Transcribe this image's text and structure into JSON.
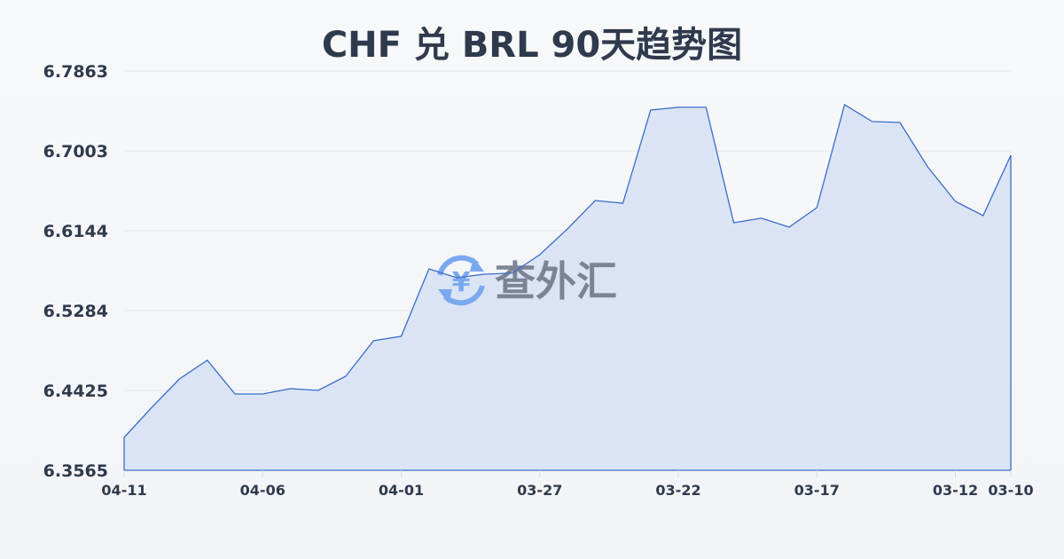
{
  "chart_data": {
    "type": "area",
    "title": "CHF 兑 BRL 90天趋势图",
    "xlabel": "",
    "ylabel": "",
    "x": [
      "04-11",
      "04-10",
      "04-09",
      "04-08",
      "04-07",
      "04-06",
      "04-05",
      "04-04",
      "04-03",
      "04-02",
      "04-01",
      "03-31",
      "03-30",
      "03-29",
      "03-28",
      "03-27",
      "03-26",
      "03-25",
      "03-24",
      "03-23",
      "03-22",
      "03-21",
      "03-20",
      "03-19",
      "03-18",
      "03-17",
      "03-16",
      "03-15",
      "03-14",
      "03-13",
      "03-12",
      "03-11",
      "03-10"
    ],
    "values": [
      6.3918,
      6.4243,
      6.4549,
      6.4749,
      6.4386,
      6.4386,
      6.4444,
      6.4425,
      6.4577,
      6.4959,
      6.5007,
      6.5733,
      6.5638,
      6.5676,
      6.5686,
      6.5886,
      6.6163,
      6.6469,
      6.644,
      6.7443,
      6.7472,
      6.7472,
      6.623,
      6.6278,
      6.6182,
      6.6392,
      6.75,
      6.7319,
      6.7309,
      6.6831,
      6.6459,
      6.6306,
      6.6956
    ],
    "ylim": [
      6.3565,
      6.7863
    ],
    "yticks": [
      "6.7863",
      "6.7003",
      "6.6144",
      "6.5284",
      "6.4425",
      "6.3565"
    ],
    "xticks": [
      "04-11",
      "04-06",
      "04-01",
      "03-27",
      "03-22",
      "03-17",
      "03-12",
      "03-10"
    ],
    "grid": true,
    "line_color": "#3a6cc9",
    "fill_color": "#d6e1f5"
  },
  "watermark": {
    "text": "查外汇",
    "icon": "yen-exchange-icon",
    "icon_color": "#7aa8f0"
  }
}
